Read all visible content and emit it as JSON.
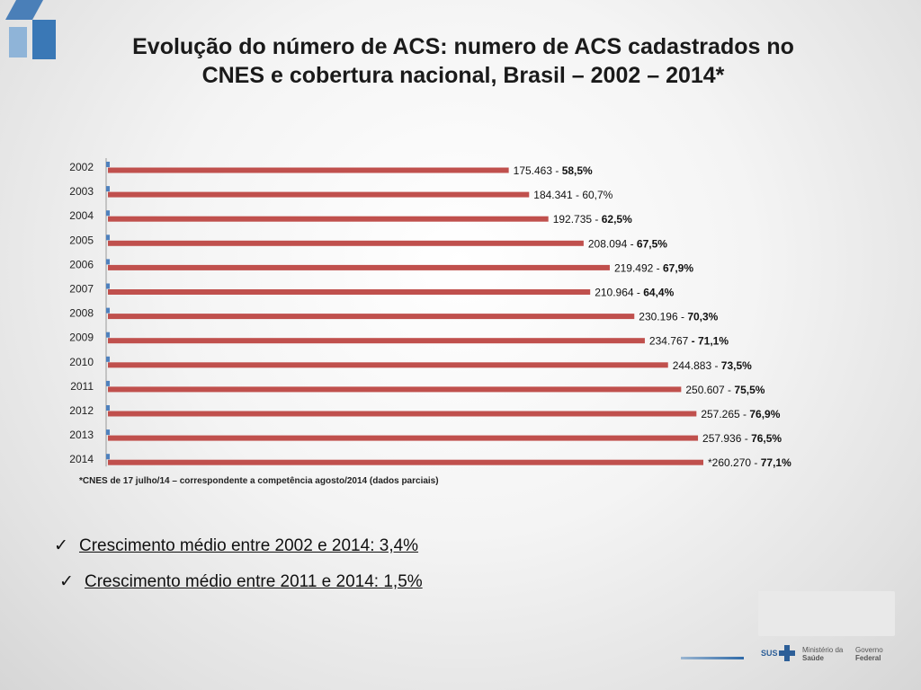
{
  "title": {
    "line1": "Evolução do número de ACS: numero de ACS cadastrados no",
    "line2": "CNES e cobertura nacional, Brasil – 2002 – 2014*"
  },
  "chart_data": {
    "type": "bar",
    "orientation": "horizontal",
    "categories": [
      "2002",
      "2003",
      "2004",
      "2005",
      "2006",
      "2007",
      "2008",
      "2009",
      "2010",
      "2011",
      "2012",
      "2013",
      "2014"
    ],
    "series": [
      {
        "values": [
          175463,
          184341,
          192735,
          208094,
          219492,
          210964,
          230196,
          234767,
          244883,
          250607,
          257265,
          257936,
          260270
        ],
        "color": "#c0504d"
      },
      {
        "values": [
          58.5,
          60.7,
          62.5,
          67.5,
          67.9,
          64.4,
          70.3,
          71.1,
          73.5,
          75.5,
          76.9,
          76.5,
          77.1
        ],
        "color": "#4f81bd"
      }
    ],
    "data_labels": [
      {
        "prefix": "175.463 - ",
        "emph": "58,5%"
      },
      {
        "prefix": "184.341 - 60,7%",
        "emph": ""
      },
      {
        "prefix": "192.735 - ",
        "emph": "62,5%"
      },
      {
        "prefix": "208.094 - ",
        "emph": "67,5%"
      },
      {
        "prefix": "219.492 - ",
        "emph": "67,9%"
      },
      {
        "prefix": "210.964 - ",
        "emph": "64,4%"
      },
      {
        "prefix": "230.196 - ",
        "emph": "70,3%"
      },
      {
        "prefix": "234.767 ",
        "emph": "- 71,1%"
      },
      {
        "prefix": "244.883 - ",
        "emph": "73,5%"
      },
      {
        "prefix": "250.607 - ",
        "emph": "75,5%"
      },
      {
        "prefix": "257.265 - ",
        "emph": "76,9%"
      },
      {
        "prefix": "257.936 - ",
        "emph": "76,5%"
      },
      {
        "prefix": "*260.270 - ",
        "emph": "77,1%"
      }
    ],
    "xlim": [
      0,
      260270
    ],
    "grid": false,
    "legend": "none"
  },
  "footnote": "*CNES de 17  julho/14 – correspondente a competência agosto/2014 (dados parciais)",
  "bullets": [
    {
      "check": "✓",
      "text": "Crescimento médio entre 2002 e 2014: 3,4%"
    },
    {
      "check": "✓",
      "text": "Crescimento médio entre 2011 e 2014: 1,5%"
    }
  ],
  "footer": {
    "sus": "SUS",
    "ministry": [
      "Ministério da",
      "Saúde"
    ],
    "government": [
      "Governo",
      "Federal"
    ]
  },
  "colors": {
    "primary_bar": "#c0504d",
    "secondary_bar": "#4f81bd",
    "brand": "#2d5f98"
  }
}
